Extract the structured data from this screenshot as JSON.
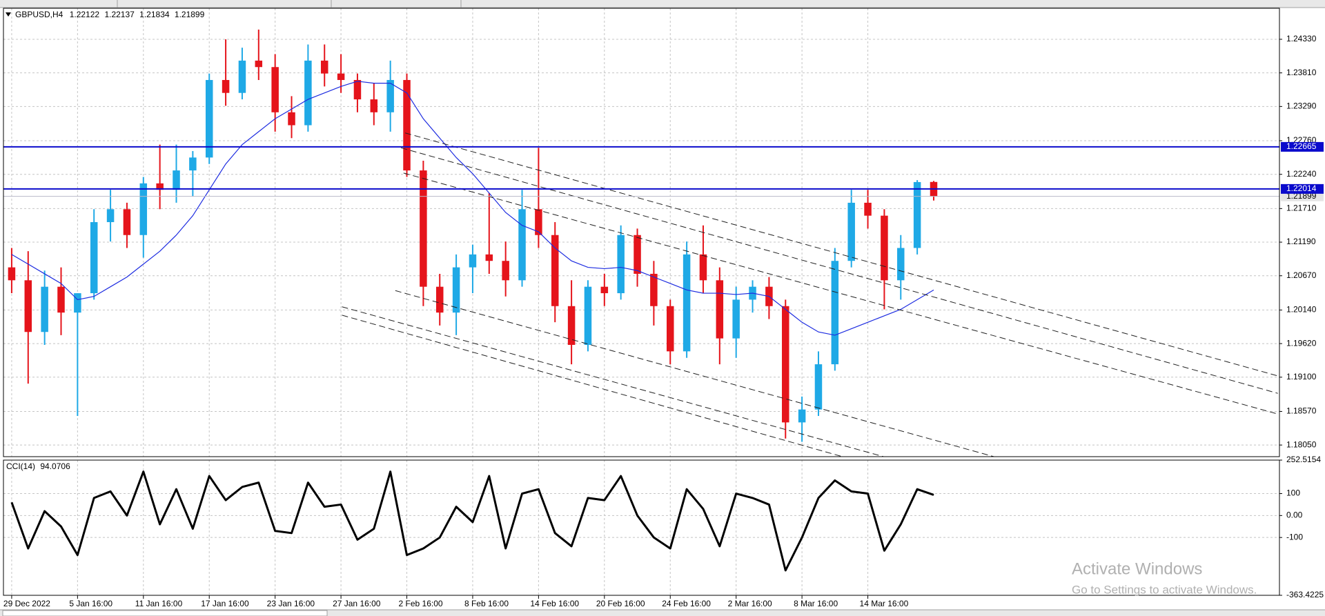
{
  "watermark": {
    "title": "Activate Windows",
    "subtitle": "Go to Settings to activate Windows."
  },
  "chart_data": [
    {
      "type": "candlestick",
      "title": "GBPUSD,H4",
      "up_color": "#1fa9e6",
      "down_color": "#e5141b",
      "grid": true,
      "xlim": [
        -0.5,
        77
      ],
      "xticks": [
        {
          "value": 0,
          "label": "29 Dec 2022"
        },
        {
          "value": 4,
          "label": "5 Jan 16:00"
        },
        {
          "value": 8,
          "label": "11 Jan 16:00"
        },
        {
          "value": 12,
          "label": "17 Jan 16:00"
        },
        {
          "value": 16,
          "label": "23 Jan 16:00"
        },
        {
          "value": 20,
          "label": "27 Jan 16:00"
        },
        {
          "value": 24,
          "label": "2 Feb 16:00"
        },
        {
          "value": 28,
          "label": "8 Feb 16:00"
        },
        {
          "value": 32,
          "label": "14 Feb 16:00"
        },
        {
          "value": 36,
          "label": "20 Feb 16:00"
        },
        {
          "value": 40,
          "label": "24 Feb 16:00"
        },
        {
          "value": 44,
          "label": "2 Mar 16:00"
        },
        {
          "value": 48,
          "label": "8 Mar 16:00"
        },
        {
          "value": 52,
          "label": "14 Mar 16:00"
        }
      ],
      "ylim": [
        1.1787,
        1.2481
      ],
      "yticks": [
        {
          "value": 1.2433,
          "label": "1.24330"
        },
        {
          "value": 1.2381,
          "label": "1.23810"
        },
        {
          "value": 1.2329,
          "label": "1.23290"
        },
        {
          "value": 1.2276,
          "label": "1.22760"
        },
        {
          "value": 1.2224,
          "label": "1.22240"
        },
        {
          "value": 1.2171,
          "label": "1.21710"
        },
        {
          "value": 1.2119,
          "label": "1.21190"
        },
        {
          "value": 1.2067,
          "label": "1.20670"
        },
        {
          "value": 1.2014,
          "label": "1.20140"
        },
        {
          "value": 1.1962,
          "label": "1.19620"
        },
        {
          "value": 1.191,
          "label": "1.19100"
        },
        {
          "value": 1.1857,
          "label": "1.18570"
        },
        {
          "value": 1.1805,
          "label": "1.18050"
        }
      ],
      "open": [
        1.208,
        1.206,
        1.198,
        1.205,
        1.201,
        1.204,
        1.215,
        1.217,
        1.213,
        1.221,
        1.22,
        1.223,
        1.225,
        1.237,
        1.235,
        1.24,
        1.239,
        1.232,
        1.23,
        1.24,
        1.238,
        1.237,
        1.234,
        1.232,
        1.237,
        1.223,
        1.205,
        1.201,
        1.208,
        1.21,
        1.209,
        1.206,
        1.217,
        1.213,
        1.202,
        1.196,
        1.205,
        1.204,
        1.213,
        1.207,
        1.202,
        1.195,
        1.21,
        1.206,
        1.197,
        1.203,
        1.205,
        1.202,
        1.184,
        1.186,
        1.193,
        1.209,
        1.218,
        1.216,
        1.206,
        1.211,
        1.22122
      ],
      "high": [
        1.211,
        1.2105,
        1.2075,
        1.208,
        1.204,
        1.217,
        1.22,
        1.218,
        1.222,
        1.227,
        1.227,
        1.226,
        1.238,
        1.2433,
        1.242,
        1.2448,
        1.241,
        1.2345,
        1.2425,
        1.2425,
        1.241,
        1.238,
        1.2365,
        1.24,
        1.238,
        1.2245,
        1.207,
        1.21,
        1.2115,
        1.2195,
        1.212,
        1.22,
        1.2265,
        1.215,
        1.206,
        1.206,
        1.207,
        1.2145,
        1.214,
        1.209,
        1.203,
        1.212,
        1.2145,
        1.208,
        1.205,
        1.206,
        1.2065,
        1.203,
        1.188,
        1.195,
        1.211,
        1.22,
        1.22,
        1.217,
        1.213,
        1.2215,
        1.22137
      ],
      "low": [
        1.204,
        1.19,
        1.196,
        1.1975,
        1.185,
        1.203,
        1.212,
        1.211,
        1.2095,
        1.217,
        1.218,
        1.219,
        1.224,
        1.233,
        1.234,
        1.237,
        1.229,
        1.228,
        1.229,
        1.236,
        1.235,
        1.232,
        1.23,
        1.229,
        1.222,
        1.202,
        1.199,
        1.1975,
        1.204,
        1.207,
        1.2035,
        1.205,
        1.211,
        1.1995,
        1.193,
        1.195,
        1.202,
        1.203,
        1.205,
        1.199,
        1.193,
        1.194,
        1.204,
        1.193,
        1.194,
        1.201,
        1.2,
        1.1815,
        1.181,
        1.185,
        1.192,
        1.208,
        1.214,
        1.2015,
        1.203,
        1.21,
        1.21834
      ],
      "close": [
        1.206,
        1.198,
        1.205,
        1.201,
        1.204,
        1.215,
        1.217,
        1.213,
        1.221,
        1.22,
        1.223,
        1.225,
        1.237,
        1.235,
        1.24,
        1.239,
        1.232,
        1.23,
        1.24,
        1.238,
        1.237,
        1.234,
        1.232,
        1.237,
        1.223,
        1.205,
        1.201,
        1.208,
        1.21,
        1.209,
        1.206,
        1.217,
        1.213,
        1.202,
        1.196,
        1.205,
        1.204,
        1.213,
        1.207,
        1.202,
        1.195,
        1.21,
        1.206,
        1.197,
        1.203,
        1.205,
        1.202,
        1.184,
        1.186,
        1.193,
        1.209,
        1.218,
        1.216,
        1.206,
        1.211,
        1.2212,
        1.21899
      ],
      "moving_average": {
        "color": "#1c2be0",
        "values": [
          1.21,
          1.2085,
          1.207,
          1.2055,
          1.203,
          1.2035,
          1.205,
          1.2065,
          1.2085,
          1.2105,
          1.213,
          1.216,
          1.22,
          1.224,
          1.227,
          1.229,
          1.231,
          1.2325,
          1.234,
          1.235,
          1.236,
          1.2368,
          1.2365,
          1.2365,
          1.235,
          1.231,
          1.228,
          1.225,
          1.2225,
          1.2195,
          1.2165,
          1.2145,
          1.2135,
          1.211,
          1.209,
          1.208,
          1.2078,
          1.208,
          1.2075,
          1.2065,
          1.2055,
          1.2045,
          1.204,
          1.204,
          1.2038,
          1.204,
          1.2035,
          1.2015,
          1.1995,
          1.198,
          1.1975,
          1.1985,
          1.1995,
          1.2005,
          1.2015,
          1.203,
          1.2045
        ]
      },
      "hlines": [
        {
          "value": 1.22665,
          "color": "#0a0acc"
        },
        {
          "value": 1.22014,
          "color": "#0a0acc"
        }
      ],
      "trendlines": [
        {
          "x": [
            23.9,
            76.9
          ],
          "y": [
            1.2288,
            1.1912
          ]
        },
        {
          "x": [
            23.65,
            76.9
          ],
          "y": [
            1.2265,
            1.1885
          ]
        },
        {
          "x": [
            23.8,
            76.9
          ],
          "y": [
            1.2226,
            1.1853
          ]
        },
        {
          "x": [
            23.3,
            59.8
          ],
          "y": [
            1.2044,
            1.1786
          ]
        },
        {
          "x": [
            20.06,
            53.1
          ],
          "y": [
            1.2019,
            1.1786
          ]
        },
        {
          "x": [
            20.06,
            50.6
          ],
          "y": [
            1.2006,
            1.1786
          ]
        }
      ]
    },
    {
      "type": "line",
      "title": "CCI(14)",
      "grid": true,
      "ylim": [
        -363.4225,
        252.5154
      ],
      "yticks": [
        252.5154,
        100,
        {
          "value": 0,
          "label": "0.00"
        },
        -100,
        -363.4225
      ],
      "series": [
        {
          "color": "#000000",
          "values": [
            60,
            -150,
            20,
            -50,
            -180,
            80,
            110,
            0,
            200,
            -40,
            120,
            -60,
            180,
            70,
            130,
            150,
            -70,
            -80,
            150,
            40,
            50,
            -110,
            -60,
            200,
            -180,
            -150,
            -100,
            40,
            -30,
            180,
            -150,
            100,
            120,
            -80,
            -140,
            80,
            70,
            180,
            0,
            -100,
            -150,
            120,
            30,
            -140,
            100,
            80,
            50,
            -250,
            -100,
            80,
            160,
            110,
            100,
            -160,
            -40,
            120,
            94.0706
          ]
        }
      ]
    }
  ]
}
